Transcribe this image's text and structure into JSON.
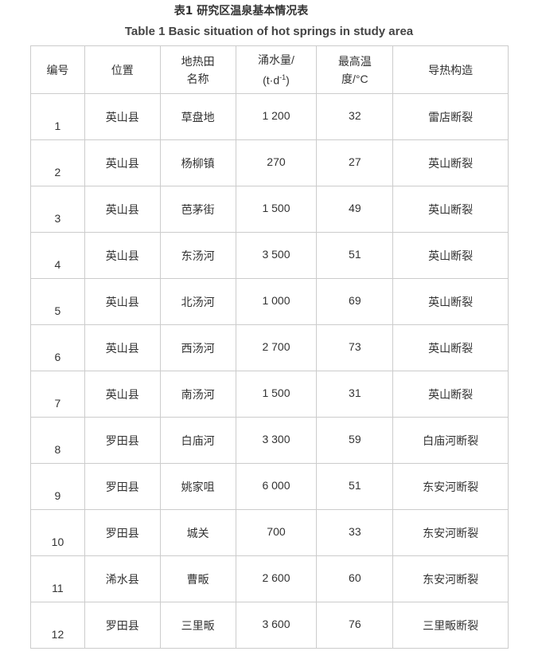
{
  "title_cn": "表1 研究区温泉基本情况表",
  "title_en": "Table 1 Basic situation of hot springs in study area",
  "headers": {
    "no": "编号",
    "loc": "位置",
    "field1": "地热田",
    "field2": "名称",
    "flow1": "涌水量/",
    "flow2a": "(t·d",
    "flow2sup": "-1",
    "flow2b": ")",
    "temp1": "最高温",
    "temp2": "度/°C",
    "struct": "导热构造"
  },
  "rows": [
    [
      "1",
      "英山县",
      "草盘地",
      "1 200",
      "32",
      "雷店断裂"
    ],
    [
      "2",
      "英山县",
      "杨柳镇",
      "270",
      "27",
      "英山断裂"
    ],
    [
      "3",
      "英山县",
      "芭茅街",
      "1 500",
      "49",
      "英山断裂"
    ],
    [
      "4",
      "英山县",
      "东汤河",
      "3 500",
      "51",
      "英山断裂"
    ],
    [
      "5",
      "英山县",
      "北汤河",
      "1 000",
      "69",
      "英山断裂"
    ],
    [
      "6",
      "英山县",
      "西汤河",
      "2 700",
      "73",
      "英山断裂"
    ],
    [
      "7",
      "英山县",
      "南汤河",
      "1 500",
      "31",
      "英山断裂"
    ],
    [
      "8",
      "罗田县",
      "白庙河",
      "3 300",
      "59",
      "白庙河断裂"
    ],
    [
      "9",
      "罗田县",
      "姚家咀",
      "6 000",
      "51",
      "东安河断裂"
    ],
    [
      "10",
      "罗田县",
      "城关",
      "700",
      "33",
      "东安河断裂"
    ],
    [
      "11",
      "浠水县",
      "曹畈",
      "2 600",
      "60",
      "东安河断裂"
    ],
    [
      "12",
      "罗田县",
      "三里畈",
      "3 600",
      "76",
      "三里畈断裂"
    ]
  ]
}
